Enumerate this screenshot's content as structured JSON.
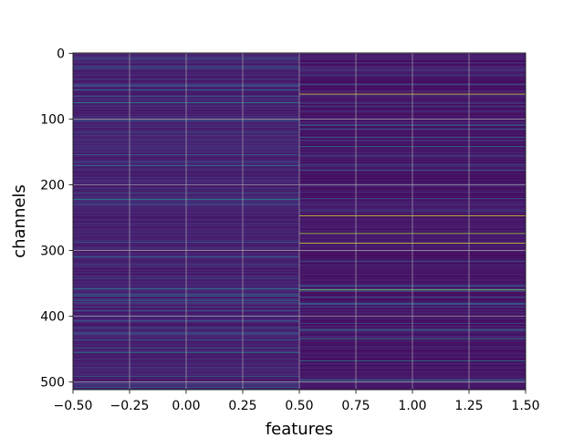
{
  "chart_data": {
    "type": "heatmap",
    "title": "",
    "xlabel": "features",
    "ylabel": "channels",
    "colormap": "viridis",
    "xlim": [
      -0.5,
      1.5
    ],
    "ylim": [
      511.5,
      -0.5
    ],
    "x_ticks": [
      -0.5,
      -0.25,
      0.0,
      0.25,
      0.5,
      0.75,
      1.0,
      1.25,
      1.5
    ],
    "x_tick_labels": [
      "−0.50",
      "−0.25",
      "0.00",
      "0.25",
      "0.50",
      "0.75",
      "1.00",
      "1.25",
      "1.50"
    ],
    "y_ticks": [
      0,
      100,
      200,
      300,
      400,
      500
    ],
    "y_tick_labels": [
      "0",
      "100",
      "200",
      "300",
      "400",
      "500"
    ],
    "grid": true,
    "n_channels": 512,
    "columns": [
      {
        "feature": 0,
        "base_value": 0.12,
        "highlights": [
          {
            "channel": 75,
            "value": 0.5
          },
          {
            "channel": 120,
            "value": 0.35
          },
          {
            "channel": 222,
            "value": 0.5
          },
          {
            "channel": 358,
            "value": 0.45
          },
          {
            "channel": 455,
            "value": 0.45
          }
        ]
      },
      {
        "feature": 1,
        "base_value": 0.08,
        "highlights": [
          {
            "channel": 62,
            "value": 0.95
          },
          {
            "channel": 142,
            "value": 0.4
          },
          {
            "channel": 178,
            "value": 0.35
          },
          {
            "channel": 247,
            "value": 0.95
          },
          {
            "channel": 274,
            "value": 0.85
          },
          {
            "channel": 289,
            "value": 0.95
          },
          {
            "channel": 360,
            "value": 0.8
          },
          {
            "channel": 380,
            "value": 0.4
          },
          {
            "channel": 420,
            "value": 0.45
          },
          {
            "channel": 434,
            "value": 0.5
          },
          {
            "channel": 468,
            "value": 0.45
          },
          {
            "channel": 498,
            "value": 0.35
          }
        ]
      }
    ]
  }
}
